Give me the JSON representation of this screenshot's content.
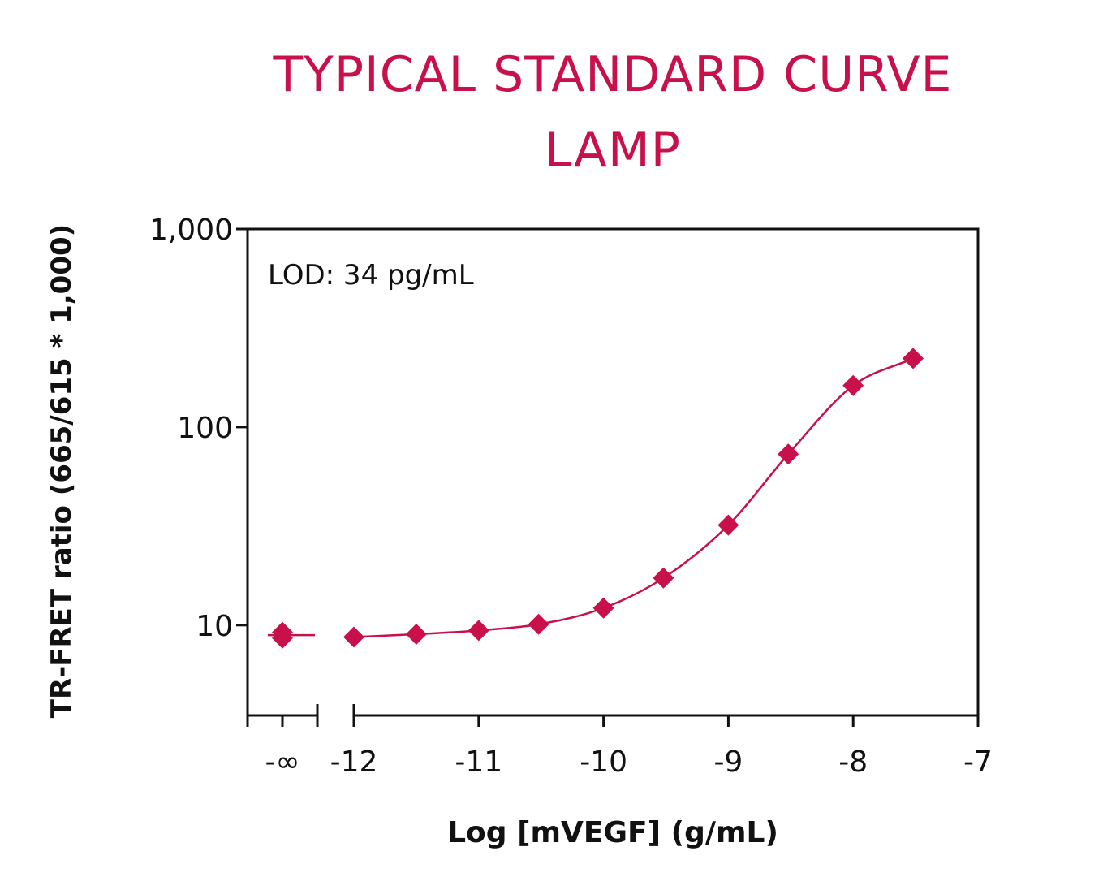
{
  "chart_data": {
    "type": "scatter",
    "title_lines": [
      "TYPICAL STANDARD CURVE",
      "LAMP"
    ],
    "xlabel": "Log [mVEGF] (g/mL)",
    "ylabel": "TR-FRET ratio (665/615 * 1,000)",
    "annotation": "LOD: 34 pg/mL",
    "y_scale": "log",
    "ylim": [
      3.5,
      1000
    ],
    "xlim": [
      -12,
      -7
    ],
    "x_ticks": [
      "-12",
      "-11",
      "-10",
      "-9",
      "-8",
      "-7"
    ],
    "x_break_label": "-∞",
    "y_ticks": [
      "10",
      "100",
      "1,000"
    ],
    "grid": false,
    "marker_color": "#c8104a",
    "series": [
      {
        "marker": "diamond",
        "zero_point_values": [
          9.2,
          8.6
        ],
        "x": [
          -12,
          -11.5,
          -11,
          -10.52,
          -10,
          -9.52,
          -9,
          -8.52,
          -8,
          -7.52
        ],
        "y": [
          8.7,
          9.0,
          9.4,
          10.1,
          12.2,
          17.3,
          32.0,
          73.0,
          162,
          222
        ]
      }
    ]
  }
}
